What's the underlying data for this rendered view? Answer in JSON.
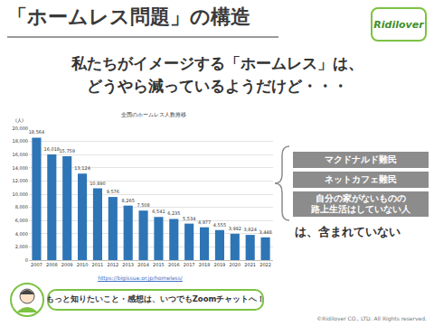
{
  "slide": {
    "title": "「ホームレス問題」の構造",
    "logo": "Ridilover",
    "subtitle": [
      "私たちがイメージする「ホームレス」は、",
      "どうやら減っているようだけど・・・"
    ],
    "source_url": "https://bigissue.or.jp/homeless/",
    "boxes": [
      [
        "マクドナルド難民"
      ],
      [
        "ネットカフェ難民"
      ],
      [
        "自分の家がないものの",
        "路上生活はしていない人"
      ]
    ],
    "boxes_note": "は、含まれていない",
    "speech_bubble": "もっと知りたいこと・感想は、いつでもZoomチャットへ！",
    "copyright": "©Ridilover CO., LTD. All Rights reserved."
  },
  "chart_data": {
    "type": "bar",
    "title": "全国のホームレス人数推移",
    "ylabel": "(人)",
    "categories": [
      "2007",
      "2008",
      "2009",
      "2010",
      "2011",
      "2012",
      "2013",
      "2014",
      "2015",
      "2016",
      "2017",
      "2018",
      "2019",
      "2020",
      "2021",
      "2022"
    ],
    "values": [
      18564,
      16018,
      15759,
      13124,
      10890,
      9576,
      8265,
      7508,
      6541,
      6235,
      5534,
      4977,
      4555,
      3992,
      3824,
      3448
    ],
    "value_labels": [
      "18,564",
      "16,018",
      "15,759",
      "13,124",
      "10,890",
      "9,576",
      "8,265",
      "7,508",
      "6,541",
      "6,235",
      "5,534",
      "4,977",
      "4,555",
      "3,992",
      "3,824",
      "3,448"
    ],
    "data_labels": true,
    "color": "#2e75b6",
    "ylim": [
      0,
      20000
    ],
    "yticks": [
      0,
      {
        "value": 2000,
        "label": "2,000"
      },
      {
        "value": 4000,
        "label": "4,000"
      },
      {
        "value": 6000,
        "label": "6,000"
      },
      {
        "value": 8000,
        "label": "8,000"
      },
      {
        "value": 10000,
        "label": "10,000"
      },
      {
        "value": 12000,
        "label": "12,000"
      },
      {
        "value": 14000,
        "label": "14,000"
      },
      {
        "value": 16000,
        "label": "16,000"
      },
      {
        "value": 18000,
        "label": "18,000"
      },
      {
        "value": 20000,
        "label": "20,000"
      }
    ],
    "grid": true
  }
}
